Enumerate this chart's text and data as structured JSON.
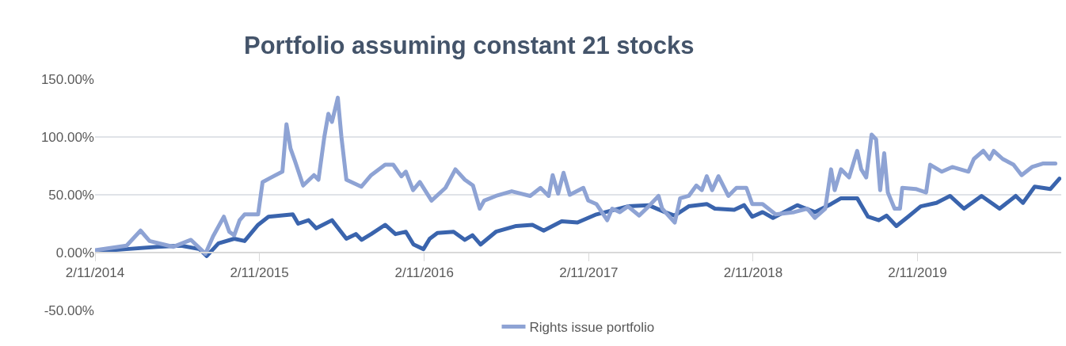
{
  "chart_data": {
    "type": "line",
    "title": "Portfolio assuming constant 21 stocks",
    "series": [
      {
        "name": null,
        "color": "#3a64ad",
        "x": [
          "2014-11-02",
          "2015-01-11",
          "2015-03-20",
          "2015-05-12",
          "2015-06-22",
          "2015-07-08",
          "2015-08-03",
          "2015-09-07",
          "2015-09-30",
          "2015-10-30",
          "2015-11-22",
          "2016-01-15",
          "2016-01-27",
          "2016-02-19",
          "2016-03-07",
          "2016-04-11",
          "2016-05-13",
          "2016-06-03",
          "2016-06-16",
          "2016-07-07",
          "2016-08-07",
          "2016-08-30",
          "2016-09-22",
          "2016-10-09",
          "2016-10-31",
          "2016-11-14",
          "2016-12-01",
          "2017-01-06",
          "2017-01-31",
          "2017-02-17",
          "2017-03-07",
          "2017-04-10",
          "2017-05-25",
          "2017-06-30",
          "2017-07-25",
          "2017-09-03",
          "2017-10-08",
          "2017-11-19",
          "2018-01-28",
          "2018-03-15",
          "2018-04-20",
          "2018-05-12",
          "2018-06-12",
          "2018-07-22",
          "2018-08-09",
          "2018-09-21",
          "2018-10-13",
          "2018-10-31",
          "2018-11-23",
          "2018-12-16",
          "2019-02-08",
          "2019-03-19",
          "2019-04-24",
          "2019-05-16",
          "2019-06-21",
          "2019-07-15",
          "2019-08-08",
          "2019-08-25",
          "2019-09-16",
          "2019-10-12",
          "2019-11-09",
          "2019-12-14",
          "2020-01-13",
          "2020-02-13",
          "2020-03-23",
          "2020-05-02",
          "2020-06-07",
          "2020-06-23",
          "2020-07-19",
          "2020-08-23",
          "2020-09-12"
        ],
        "values": [
          1,
          3,
          5,
          6,
          3,
          -3,
          8,
          12,
          10,
          24,
          31,
          33,
          25,
          28,
          21,
          28,
          12,
          16,
          11,
          16,
          24,
          16,
          18,
          7,
          3,
          12,
          17,
          18,
          11,
          15,
          7,
          18,
          23,
          24,
          19,
          27,
          26,
          33,
          40,
          41,
          35,
          32,
          40,
          42,
          38,
          37,
          41,
          31,
          35,
          30,
          41,
          35,
          42,
          47,
          47,
          31,
          28,
          32,
          23,
          31,
          40,
          43,
          49,
          38,
          49,
          38,
          49,
          43,
          57,
          55,
          64
        ]
      },
      {
        "name": "Rights issue portfolio",
        "color": "#8ea3d4",
        "x": [
          "2014-11-02",
          "2015-01-11",
          "2015-02-11",
          "2015-03-03",
          "2015-04-25",
          "2015-06-03",
          "2015-07-05",
          "2015-07-22",
          "2015-08-15",
          "2015-08-27",
          "2015-09-07",
          "2015-09-19",
          "2015-09-30",
          "2015-10-30",
          "2015-11-09",
          "2015-11-28",
          "2015-12-23",
          "2016-01-01",
          "2016-01-10",
          "2016-01-20",
          "2016-02-07",
          "2016-03-02",
          "2016-03-12",
          "2016-03-25",
          "2016-04-03",
          "2016-04-11",
          "2016-04-24",
          "2016-05-02",
          "2016-05-13",
          "2016-06-15",
          "2016-07-07",
          "2016-08-07",
          "2016-08-25",
          "2016-09-12",
          "2016-09-22",
          "2016-10-08",
          "2016-10-23",
          "2016-11-18",
          "2016-12-19",
          "2017-01-10",
          "2017-01-31",
          "2017-02-18",
          "2017-03-05",
          "2017-03-15",
          "2017-04-10",
          "2017-05-15",
          "2017-06-25",
          "2017-07-18",
          "2017-08-05",
          "2017-08-14",
          "2017-08-26",
          "2017-09-07",
          "2017-09-21",
          "2017-10-21",
          "2017-11-01",
          "2017-11-19",
          "2017-12-13",
          "2017-12-24",
          "2018-01-10",
          "2018-01-28",
          "2018-02-22",
          "2018-03-15",
          "2018-04-06",
          "2018-04-14",
          "2018-05-12",
          "2018-05-24",
          "2018-06-12",
          "2018-06-29",
          "2018-07-11",
          "2018-07-22",
          "2018-08-03",
          "2018-08-17",
          "2018-09-08",
          "2018-09-26",
          "2018-10-18",
          "2018-10-31",
          "2018-11-23",
          "2018-12-22",
          "2019-02-01",
          "2019-03-02",
          "2019-03-19",
          "2019-04-11",
          "2019-04-24",
          "2019-05-02",
          "2019-05-16",
          "2019-06-03",
          "2019-06-21",
          "2019-06-30",
          "2019-07-11",
          "2019-07-23",
          "2019-08-02",
          "2019-08-11",
          "2019-08-20",
          "2019-08-28",
          "2019-09-12",
          "2019-09-24",
          "2019-09-29",
          "2019-10-29",
          "2019-11-21",
          "2019-11-30",
          "2019-12-26",
          "2020-01-18",
          "2020-02-23",
          "2020-03-06",
          "2020-03-27",
          "2020-04-10",
          "2020-04-19",
          "2020-05-09",
          "2020-06-02",
          "2020-06-20",
          "2020-07-13",
          "2020-08-06",
          "2020-09-03"
        ],
        "values": [
          2,
          6,
          19,
          10,
          5,
          11,
          -1,
          14,
          31,
          18,
          15,
          28,
          33,
          33,
          61,
          65,
          70,
          111,
          90,
          79,
          58,
          67,
          63,
          100,
          120,
          113,
          134,
          100,
          63,
          57,
          67,
          76,
          76,
          66,
          70,
          54,
          61,
          45,
          56,
          72,
          63,
          58,
          38,
          45,
          49,
          53,
          49,
          56,
          49,
          67,
          51,
          69,
          50,
          56,
          45,
          42,
          28,
          38,
          35,
          40,
          32,
          40,
          49,
          38,
          26,
          47,
          49,
          58,
          54,
          66,
          54,
          66,
          49,
          56,
          56,
          42,
          42,
          33,
          35,
          38,
          30,
          38,
          72,
          54,
          72,
          65,
          88,
          72,
          65,
          102,
          98,
          54,
          86,
          52,
          38,
          38,
          56,
          55,
          52,
          76,
          70,
          74,
          70,
          81,
          88,
          81,
          88,
          81,
          76,
          67,
          74,
          77,
          77
        ]
      }
    ],
    "xlim": [
      "2014-11-02",
      "2020-09-16"
    ],
    "xticks": [
      {
        "value": "2014-11-02",
        "label": "2/11/2014"
      },
      {
        "value": "2015-11-02",
        "label": "2/11/2015"
      },
      {
        "value": "2016-11-02",
        "label": "2/11/2016"
      },
      {
        "value": "2017-11-02",
        "label": "2/11/2017"
      },
      {
        "value": "2018-11-02",
        "label": "2/11/2018"
      },
      {
        "value": "2019-11-02",
        "label": "2/11/2019"
      }
    ],
    "ylim": [
      -50,
      150
    ],
    "yticks": [
      {
        "value": -50,
        "label": "-50.00%"
      },
      {
        "value": 0,
        "label": "0.00%"
      },
      {
        "value": 50,
        "label": "50.00%"
      },
      {
        "value": 100,
        "label": "100.00%"
      },
      {
        "value": 150,
        "label": "150.00%"
      }
    ],
    "grid": "y",
    "legend": "bottom",
    "marker": "none",
    "line_style": "solid"
  }
}
